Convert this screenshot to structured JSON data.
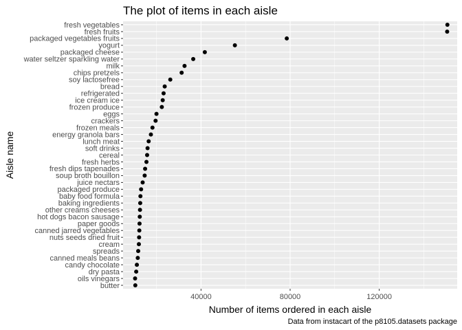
{
  "chart_data": {
    "type": "scatter",
    "title": "The plot of items in each aisle",
    "xlabel": "Number of items ordered in each aisle",
    "ylabel": "Aisle name",
    "caption": "Data from instacart of the p8105.datasets package",
    "xlim": [
      5000,
      155000
    ],
    "xticks": [
      40000,
      80000,
      120000
    ],
    "xtick_labels": [
      "40000",
      "80000",
      "120000"
    ],
    "grid": true,
    "background": "#ebebeb",
    "grid_major_color": "#ffffff",
    "point_color": "#000000",
    "categories": [
      "fresh vegetables",
      "fresh fruits",
      "packaged vegetables fruits",
      "yogurt",
      "packaged cheese",
      "water seltzer sparkling water",
      "milk",
      "chips pretzels",
      "soy lactosefree",
      "bread",
      "refrigerated",
      "ice cream ice",
      "frozen produce",
      "eggs",
      "crackers",
      "frozen meals",
      "energy granola bars",
      "lunch meat",
      "soft drinks",
      "cereal",
      "fresh herbs",
      "fresh dips tapenades",
      "soup broth bouillon",
      "juice nectars",
      "packaged produce",
      "baby food formula",
      "baking ingredients",
      "other creams cheeses",
      "hot dogs bacon sausage",
      "paper goods",
      "canned jarred vegetables",
      "nuts seeds dried fruit",
      "cream",
      "spreads",
      "canned meals beans",
      "candy chocolate",
      "dry pasta",
      "oils vinegars",
      "butter"
    ],
    "values": [
      150600,
      150500,
      78500,
      55200,
      41700,
      36500,
      32600,
      31300,
      26200,
      23700,
      23200,
      22800,
      22400,
      20000,
      19600,
      18200,
      17500,
      16500,
      16000,
      15800,
      15500,
      14900,
      14700,
      13800,
      13100,
      12800,
      12700,
      12600,
      12500,
      12400,
      12300,
      12200,
      12100,
      11800,
      11600,
      11200,
      10900,
      10400,
      10500
    ]
  }
}
